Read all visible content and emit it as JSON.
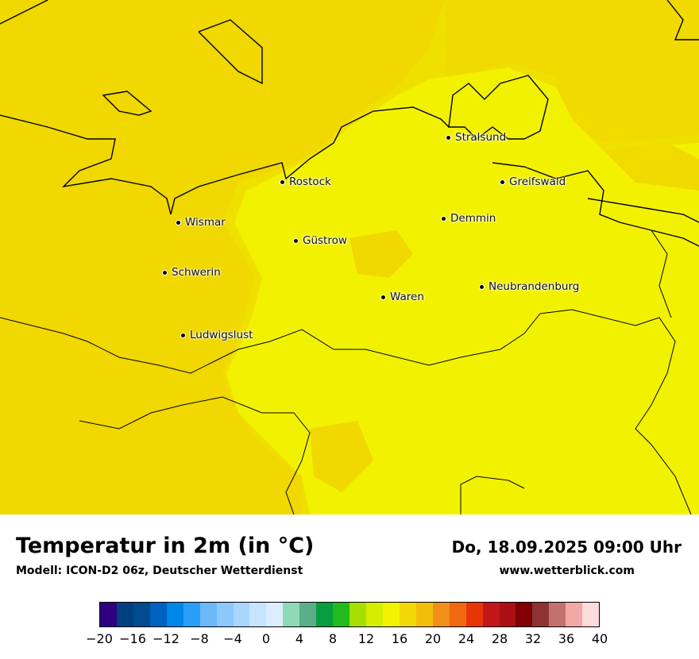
{
  "map": {
    "cities": [
      {
        "name": "Stralsund"
      },
      {
        "name": "Rostock"
      },
      {
        "name": "Greifswald"
      },
      {
        "name": "Wismar"
      },
      {
        "name": "Demmin"
      },
      {
        "name": "Güstrow"
      },
      {
        "name": "Schwerin"
      },
      {
        "name": "Neubrandenburg"
      },
      {
        "name": "Waren"
      },
      {
        "name": "Ludwigslust"
      }
    ],
    "colors": {
      "warm_area": "#f0d800",
      "warmer_area": "#f3e000",
      "cool_area": "#f2f200",
      "border_line": "#000000"
    }
  },
  "footer": {
    "title": "Temperatur in 2m (in °C)",
    "subtitle": "Modell: ICON-D2 06z, Deutscher Wetterdienst",
    "datetime": "Do, 18.09.2025 09:00 Uhr",
    "website": "www.wetterblick.com"
  },
  "legend": {
    "ticks": [
      "−20",
      "−16",
      "−12",
      "−8",
      "−4",
      "0",
      "4",
      "8",
      "12",
      "16",
      "20",
      "24",
      "28",
      "32",
      "36",
      "40"
    ],
    "min": -20,
    "max": 40,
    "colors": [
      "#2f0080",
      "#003f80",
      "#004a8f",
      "#0062c0",
      "#0085e8",
      "#2a9ef6",
      "#6cb9f9",
      "#8cc8fb",
      "#a9d6fd",
      "#c6e4ff",
      "#dcedff",
      "#8fdab6",
      "#5aae88",
      "#089d3f",
      "#21bb1e",
      "#a6df00",
      "#d5ed00",
      "#f2f300",
      "#f3d808",
      "#f2be0a",
      "#f19018",
      "#f06810",
      "#e83508",
      "#c2161a",
      "#ab0f12",
      "#800004",
      "#8c3434",
      "#c47070",
      "#f2a8a6",
      "#ffdcdc"
    ]
  }
}
